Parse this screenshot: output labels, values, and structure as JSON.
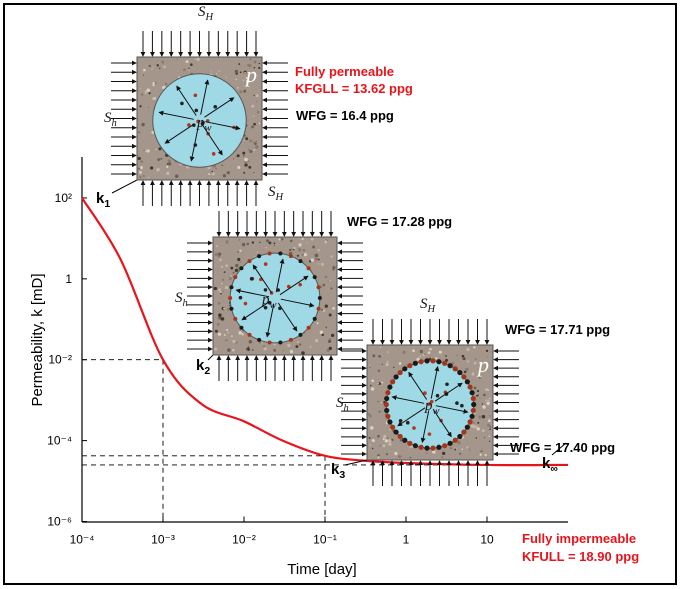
{
  "chart_data": {
    "type": "line",
    "x_label": "Time [day]",
    "y_label": "Permeability, k [mD]",
    "x_scale": "log",
    "y_scale": "log",
    "xlim": [
      0.0001,
      100
    ],
    "ylim": [
      1e-06,
      1000
    ],
    "xticks": [
      {
        "value": 0.0001,
        "label": "10⁻⁴"
      },
      {
        "value": 0.001,
        "label": "10⁻³"
      },
      {
        "value": 0.01,
        "label": "10⁻²"
      },
      {
        "value": 0.1,
        "label": "10⁻¹"
      },
      1,
      10
    ],
    "yticks": [
      {
        "value": 1e-06,
        "label": "10⁻⁶"
      },
      {
        "value": 0.0001,
        "label": "10⁻⁴"
      },
      {
        "value": 0.01,
        "label": "10⁻²"
      },
      1,
      {
        "value": 100,
        "label": "10²"
      }
    ],
    "color": "#e8141c",
    "x": [
      0.0001,
      0.0003,
      0.001,
      0.003,
      0.01,
      0.03,
      0.1,
      0.3,
      1,
      10,
      100
    ],
    "values": [
      100,
      3,
      0.01,
      0.0008,
      0.0003,
      0.0001,
      4.2e-05,
      3.2e-05,
      2.8e-05,
      2.5e-05,
      2.5e-05
    ],
    "point_labels": [
      {
        "text": "k",
        "sub": "1"
      },
      {
        "text": "k",
        "sub": "2"
      },
      {
        "text": "k",
        "sub": "3"
      },
      {
        "text": "k",
        "sub": "∞"
      }
    ],
    "annotations": [
      {
        "text": "Fully permeable",
        "color": "#e8141c"
      },
      {
        "text": "KFGLL = 13.62 ppg",
        "color": "#e8141c"
      },
      {
        "text": "WFG = 16.4 ppg",
        "color": "#000000"
      },
      {
        "text": "WFG = 17.28 ppg",
        "color": "#000000"
      },
      {
        "text": "WFG = 17.71 ppg",
        "color": "#000000"
      },
      {
        "text": "WFG = 17.40 ppg",
        "color": "#000000"
      },
      {
        "text": "Fully impermeable",
        "color": "#e8141c"
      },
      {
        "text": "KFULL = 18.90 ppg",
        "color": "#e8141c"
      }
    ],
    "diagrams": [
      {
        "labels": [
          {
            "text": "S",
            "sub": "H"
          },
          {
            "text": "S",
            "sub": "h"
          },
          {
            "text": "S",
            "sub": "H"
          },
          {
            "text": "p"
          },
          {
            "text": "p",
            "sub": "w"
          }
        ]
      },
      {
        "labels": [
          {
            "text": "S",
            "sub": "h"
          },
          {
            "text": "p",
            "sub": "w"
          }
        ]
      },
      {
        "labels": [
          {
            "text": "S",
            "sub": "H"
          },
          {
            "text": "S",
            "sub": "h"
          },
          {
            "text": "p"
          },
          {
            "text": "p",
            "sub": "w"
          }
        ]
      }
    ]
  }
}
